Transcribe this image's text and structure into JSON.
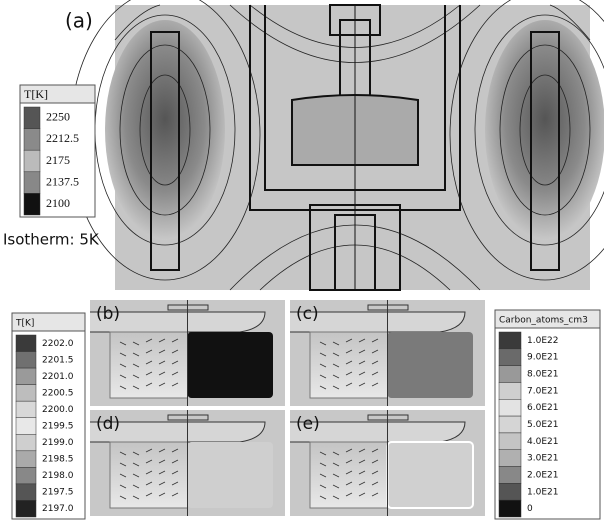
{
  "panel_a": {
    "label": "(a)",
    "legend": {
      "title": "T[K]",
      "ticks": [
        "2250",
        "2212.5",
        "2175",
        "2137.5",
        "2100"
      ]
    },
    "note": "Isotherm: 5K"
  },
  "legend_left": {
    "title": "T[K]",
    "ticks": [
      "2202.0",
      "2201.5",
      "2201.0",
      "2200.5",
      "2200.0",
      "2199.5",
      "2199.0",
      "2198.5",
      "2198.0",
      "2197.5",
      "2197.0"
    ]
  },
  "panels": [
    "(b)",
    "(c)",
    "(d)",
    "(e)"
  ],
  "legend_right": {
    "title": "Carbon_atoms_cm3",
    "ticks": [
      "1.0E22",
      "9.0E21",
      "8.0E21",
      "7.0E21",
      "6.0E21",
      "5.0E21",
      "4.0E21",
      "3.0E21",
      "2.0E21",
      "1.0E21",
      "0"
    ]
  }
}
